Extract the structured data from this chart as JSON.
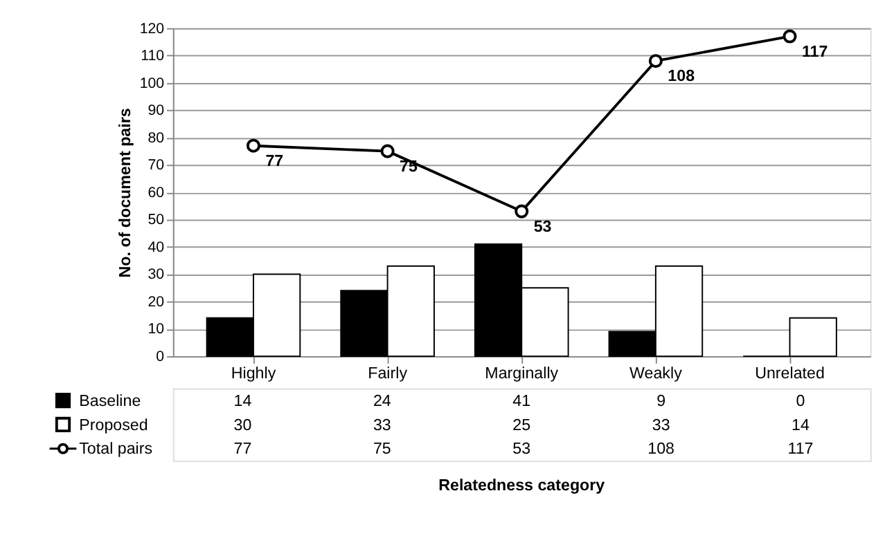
{
  "chart_data": {
    "type": "bar",
    "annotations": [
      "Relatedness category"
    ],
    "ylabel": "No. of document pairs",
    "categories": [
      "Highly",
      "Fairly",
      "Marginally",
      "Weakly",
      "Unrelated"
    ],
    "series": [
      {
        "name": "Baseline",
        "color": "#000000",
        "values": [
          14,
          24,
          41,
          9,
          0
        ]
      },
      {
        "name": "Proposed",
        "color": "#ffffff",
        "values": [
          30,
          33,
          25,
          33,
          14
        ]
      },
      {
        "name": "Total pairs",
        "type": "line",
        "color": "#000000",
        "marker": "circle",
        "values": [
          77,
          75,
          53,
          108,
          117
        ],
        "value_labels": [
          "77",
          "75",
          "53",
          "108",
          "117"
        ]
      }
    ],
    "ylim": [
      0,
      120
    ],
    "yticks": [
      0,
      10,
      20,
      30,
      40,
      50,
      60,
      70,
      80,
      90,
      100,
      110,
      120
    ],
    "grid": "y",
    "legend": "bottom",
    "data_labels": true
  }
}
